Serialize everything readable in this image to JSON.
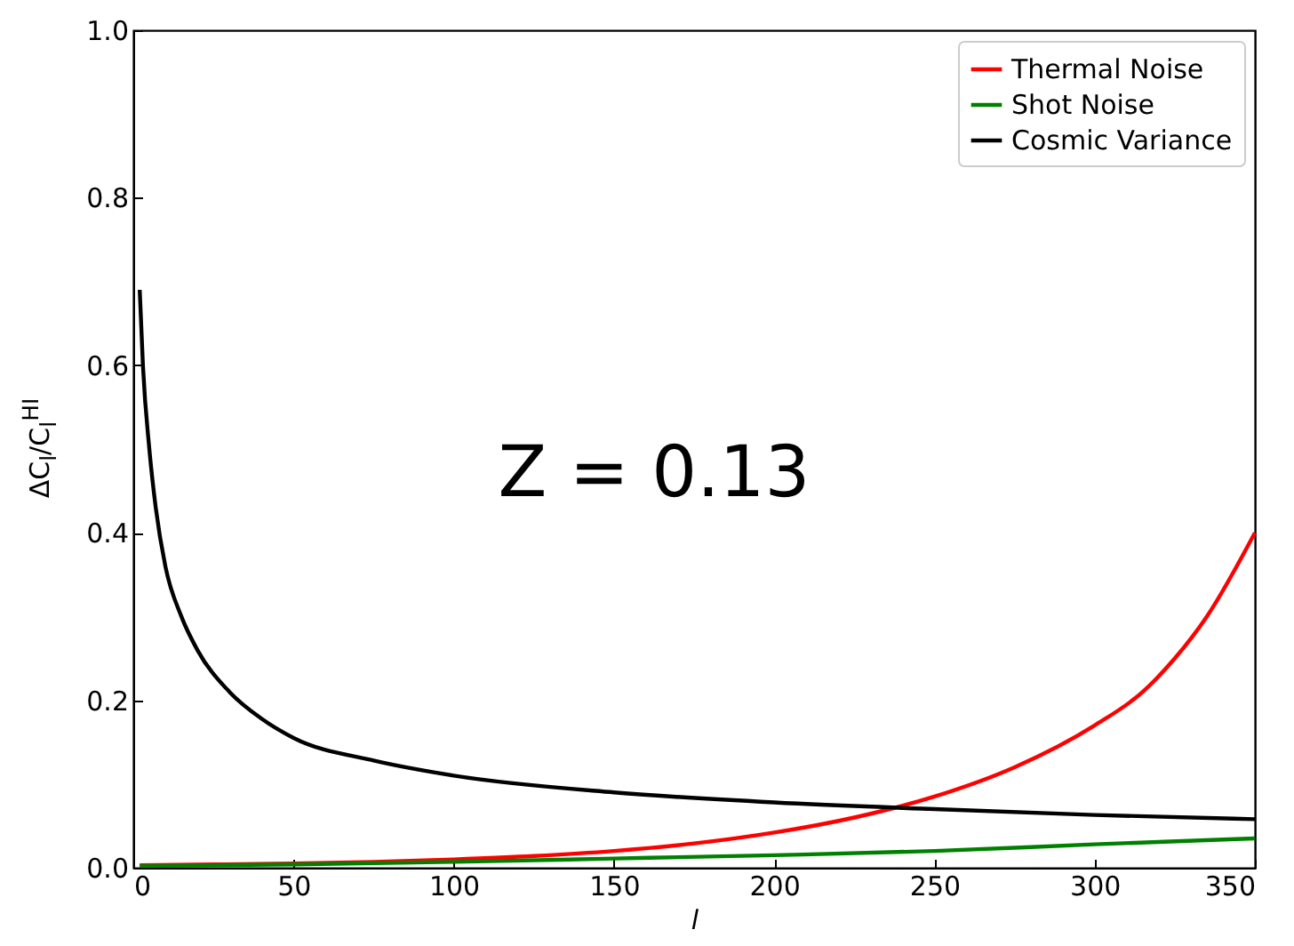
{
  "chart_data": {
    "type": "line",
    "xlabel": "l",
    "ylabel": "ΔC$_{l}$/C$_{l}$$^{HI}$",
    "xlim": [
      0,
      350
    ],
    "ylim": [
      0,
      1.0
    ],
    "xticks": [
      0,
      50,
      100,
      150,
      200,
      250,
      300,
      350
    ],
    "yticks": [
      {
        "value": 0,
        "label": "0.0"
      },
      {
        "value": 0.2,
        "label": "0.2"
      },
      {
        "value": 0.4,
        "label": "0.4"
      },
      {
        "value": 0.6,
        "label": "0.6"
      },
      {
        "value": 0.8,
        "label": "0.8"
      },
      {
        "value": 1.0,
        "label": "1.0"
      }
    ],
    "legend": "top right",
    "grid": false,
    "marker": "none",
    "line_style": "solid",
    "annotations": [
      "Z = 0.13"
    ],
    "series": [
      {
        "name": "Thermal Noise",
        "color": "#ff0000",
        "x": [
          2,
          25,
          50,
          75,
          100,
          125,
          150,
          175,
          200,
          225,
          250,
          275,
          300,
          315,
          325,
          335,
          350
        ],
        "values": [
          0.003,
          0.004,
          0.005,
          0.007,
          0.01,
          0.014,
          0.02,
          0.029,
          0.042,
          0.06,
          0.085,
          0.12,
          0.17,
          0.21,
          0.25,
          0.3,
          0.4
        ]
      },
      {
        "name": "Shot Noise",
        "color": "#008000",
        "x": [
          2,
          50,
          100,
          150,
          200,
          250,
          300,
          350
        ],
        "values": [
          0.002,
          0.004,
          0.007,
          0.011,
          0.015,
          0.02,
          0.028,
          0.035
        ]
      },
      {
        "name": "Cosmic Variance",
        "color": "#000000",
        "x": [
          2,
          3,
          5,
          7,
          10,
          15,
          20,
          30,
          40,
          50,
          75,
          100,
          150,
          200,
          250,
          300,
          350
        ],
        "values": [
          0.69,
          0.6,
          0.5,
          0.43,
          0.36,
          0.3,
          0.26,
          0.21,
          0.178,
          0.155,
          0.128,
          0.11,
          0.09,
          0.078,
          0.07,
          0.063,
          0.058
        ]
      }
    ]
  }
}
